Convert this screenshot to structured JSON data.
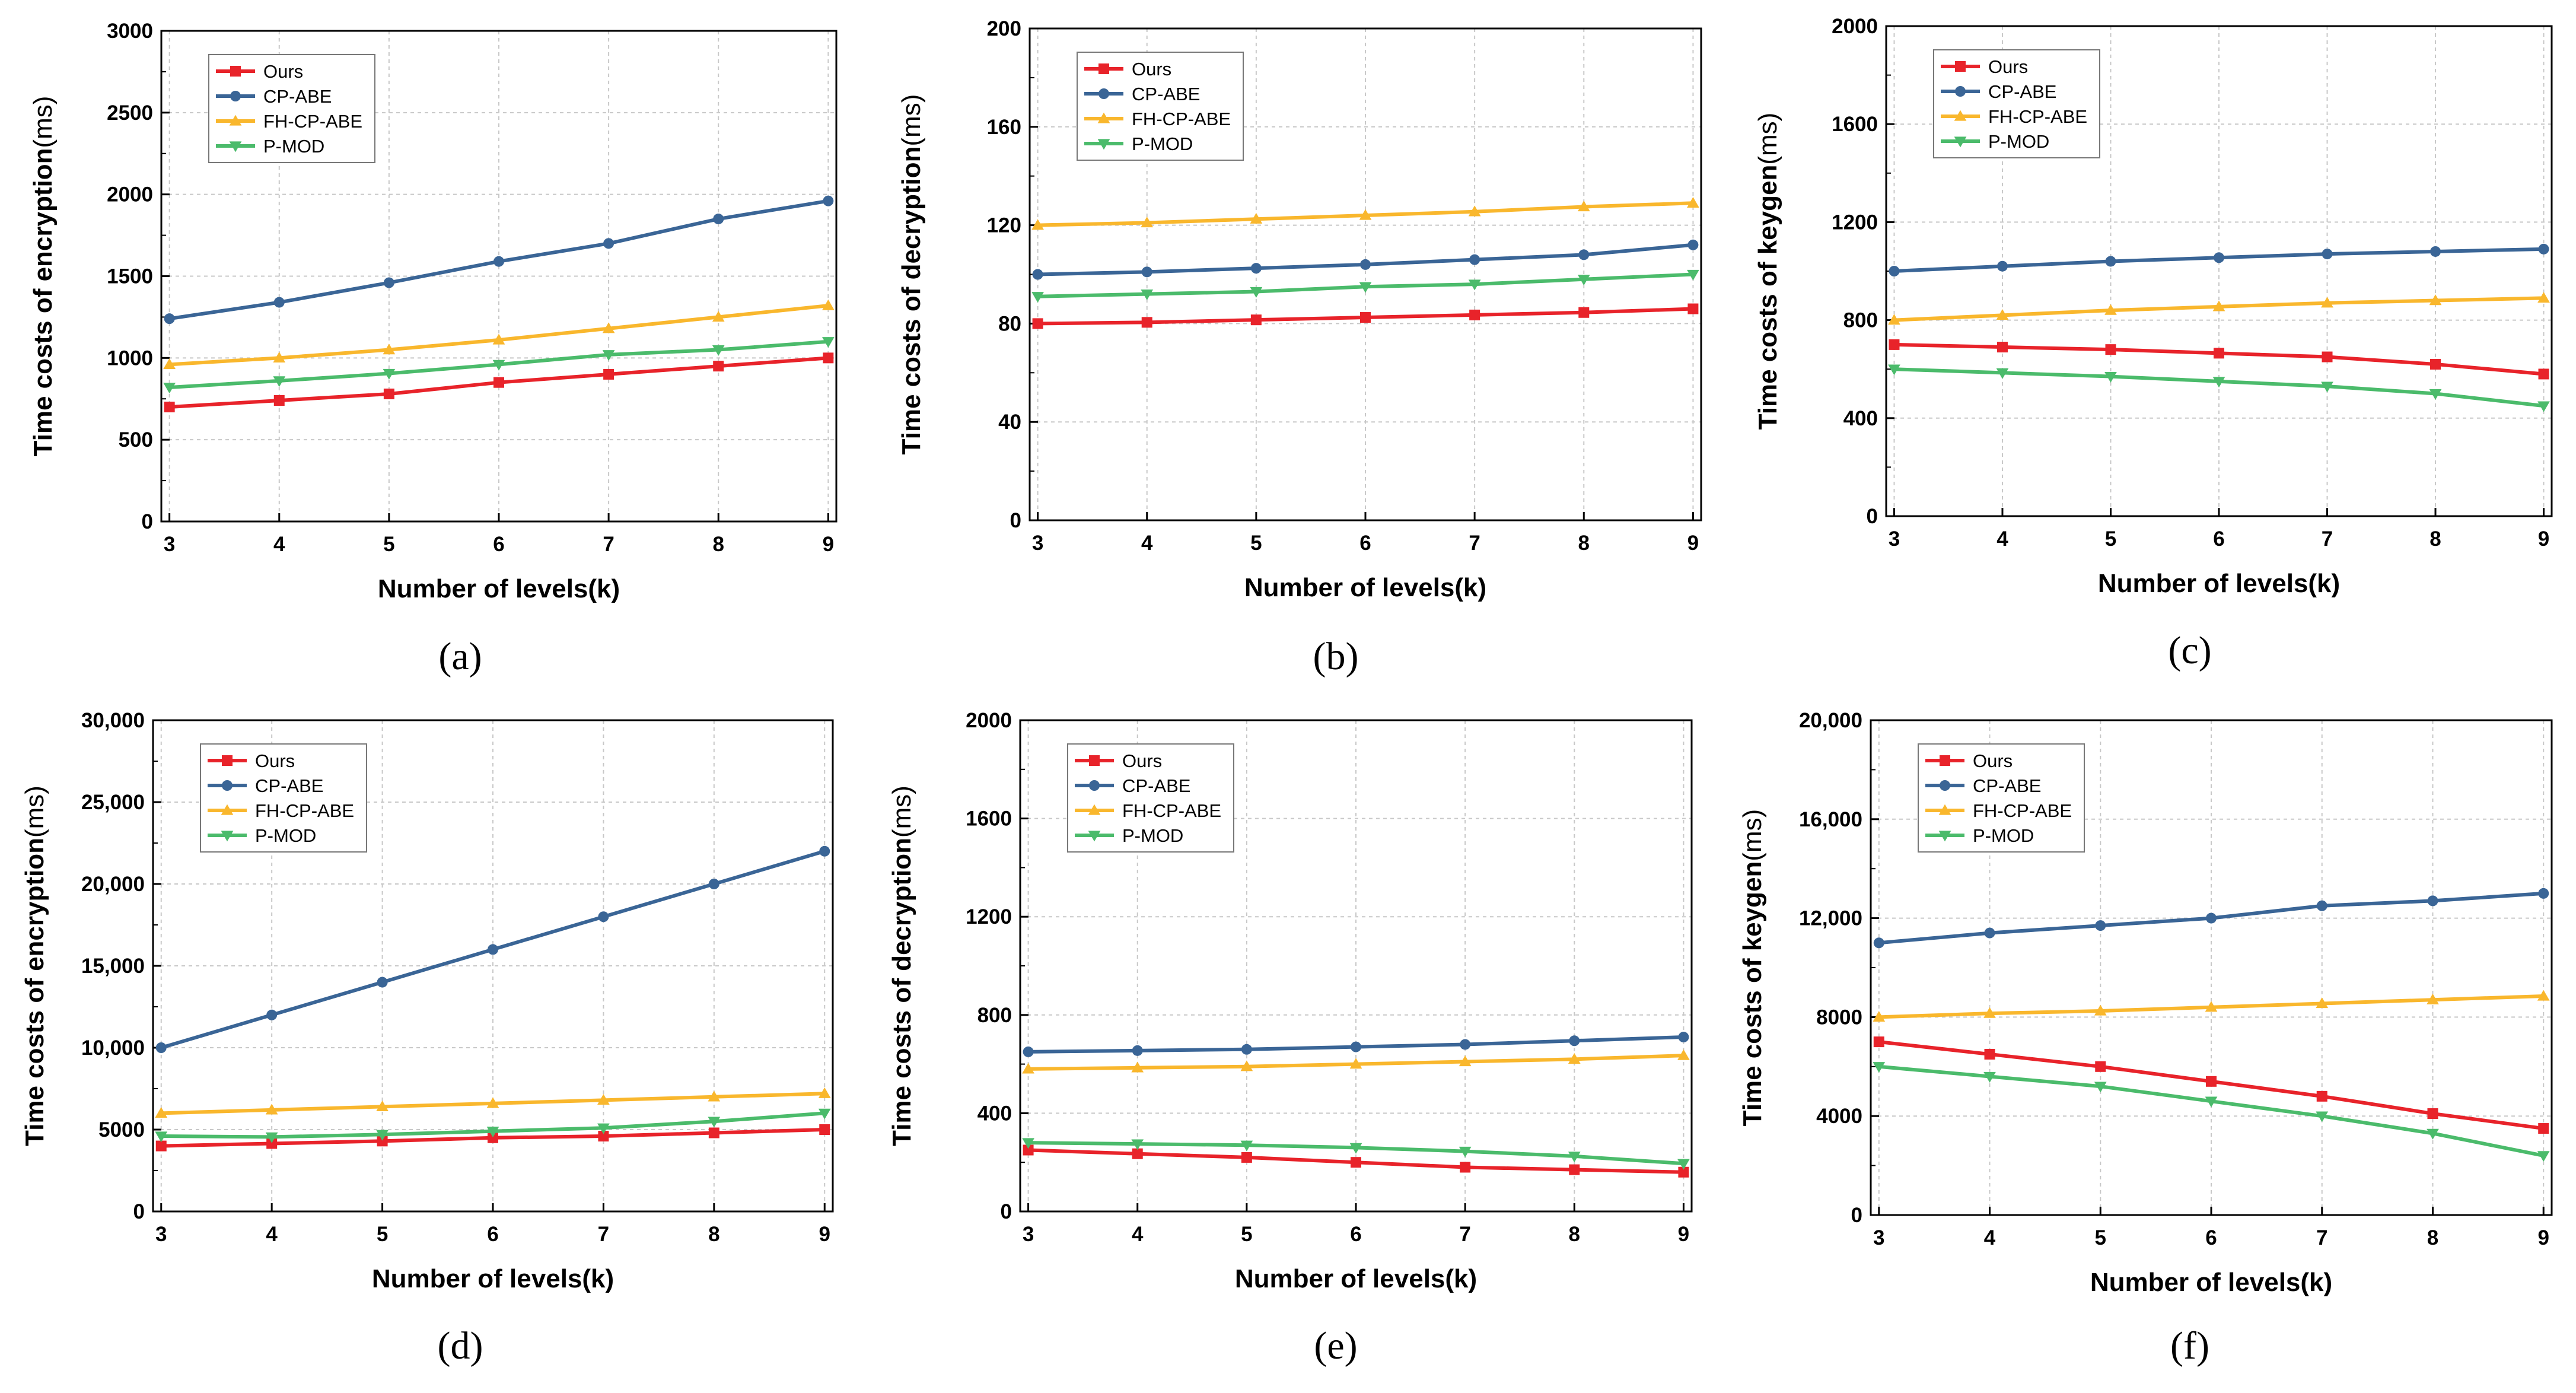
{
  "colors": {
    "Ours": "#e8232a",
    "CP-ABE": "#3a6596",
    "FH-CP-ABE": "#f9b72d",
    "P-MOD": "#4bbb6b",
    "axis": "#000000",
    "grid": "#c8c8c8"
  },
  "markers": {
    "Ours": "square",
    "CP-ABE": "circle",
    "FH-CP-ABE": "triangle-up",
    "P-MOD": "triangle-down"
  },
  "chart_data": [
    {
      "type": "line",
      "caption": "(a)",
      "xlabel": "Number of levels(k)",
      "ylabel_bold": "Time costs of encryption",
      "ylabel_unit": "(ms)",
      "x": [
        3,
        4,
        5,
        6,
        7,
        8,
        9
      ],
      "xlim": [
        3,
        9
      ],
      "ylim": [
        0,
        3000
      ],
      "yticks": [
        0,
        500,
        1000,
        1500,
        2000,
        2500,
        3000
      ],
      "ytick_labels": [
        "0",
        "500",
        "1000",
        "1500",
        "2000",
        "2500",
        "3000"
      ],
      "legend_position": "top-left",
      "grid": true,
      "series": [
        {
          "name": "Ours",
          "values": [
            700,
            740,
            780,
            850,
            900,
            950,
            1000
          ]
        },
        {
          "name": "CP-ABE",
          "values": [
            1240,
            1340,
            1460,
            1590,
            1700,
            1850,
            1960
          ]
        },
        {
          "name": "FH-CP-ABE",
          "values": [
            960,
            1000,
            1050,
            1110,
            1180,
            1250,
            1320
          ]
        },
        {
          "name": "P-MOD",
          "values": [
            820,
            860,
            905,
            960,
            1020,
            1050,
            1100
          ]
        }
      ]
    },
    {
      "type": "line",
      "caption": "(b)",
      "xlabel": "Number of levels(k)",
      "ylabel_bold": "Time costs of decryption",
      "ylabel_unit": "(ms)",
      "x": [
        3,
        4,
        5,
        6,
        7,
        8,
        9
      ],
      "xlim": [
        3,
        9
      ],
      "ylim": [
        0,
        200
      ],
      "yticks": [
        0,
        40,
        80,
        120,
        160,
        200
      ],
      "ytick_labels": [
        "0",
        "40",
        "80",
        "120",
        "160",
        "200"
      ],
      "legend_position": "top-left",
      "grid": true,
      "series": [
        {
          "name": "Ours",
          "values": [
            80,
            80.5,
            81.5,
            82.5,
            83.5,
            84.5,
            86
          ]
        },
        {
          "name": "CP-ABE",
          "values": [
            100,
            101,
            102.5,
            104,
            106,
            108,
            112
          ]
        },
        {
          "name": "FH-CP-ABE",
          "values": [
            120,
            121,
            122.5,
            124,
            125.5,
            127.5,
            129
          ]
        },
        {
          "name": "P-MOD",
          "values": [
            91,
            92,
            93,
            95,
            96,
            98,
            100
          ]
        }
      ]
    },
    {
      "type": "line",
      "caption": "(c)",
      "xlabel": "Number of levels(k)",
      "ylabel_bold": "Time costs of keygen",
      "ylabel_unit": "(ms)",
      "x": [
        3,
        4,
        5,
        6,
        7,
        8,
        9
      ],
      "xlim": [
        3,
        9
      ],
      "ylim": [
        0,
        2000
      ],
      "yticks": [
        0,
        400,
        800,
        1200,
        1600,
        2000
      ],
      "ytick_labels": [
        "0",
        "400",
        "800",
        "1200",
        "1600",
        "2000"
      ],
      "legend_position": "top-left",
      "grid": true,
      "series": [
        {
          "name": "Ours",
          "values": [
            700,
            690,
            680,
            665,
            650,
            620,
            580
          ]
        },
        {
          "name": "CP-ABE",
          "values": [
            1000,
            1020,
            1040,
            1055,
            1070,
            1080,
            1090
          ]
        },
        {
          "name": "FH-CP-ABE",
          "values": [
            800,
            820,
            840,
            855,
            870,
            880,
            890
          ]
        },
        {
          "name": "P-MOD",
          "values": [
            600,
            585,
            570,
            550,
            530,
            500,
            450
          ]
        }
      ]
    },
    {
      "type": "line",
      "caption": "(d)",
      "xlabel": "Number of levels(k)",
      "ylabel_bold": "Time costs of encryption",
      "ylabel_unit": "(ms)",
      "x": [
        3,
        4,
        5,
        6,
        7,
        8,
        9
      ],
      "xlim": [
        3,
        9
      ],
      "ylim": [
        0,
        30000
      ],
      "yticks": [
        0,
        5000,
        10000,
        15000,
        20000,
        25000,
        30000
      ],
      "ytick_labels": [
        "0",
        "5000",
        "10,000",
        "15,000",
        "20,000",
        "25,000",
        "30,000"
      ],
      "legend_position": "top-left",
      "grid": true,
      "series": [
        {
          "name": "Ours",
          "values": [
            4000,
            4150,
            4300,
            4500,
            4600,
            4800,
            5000
          ]
        },
        {
          "name": "CP-ABE",
          "values": [
            10000,
            12000,
            14000,
            16000,
            18000,
            20000,
            22000
          ]
        },
        {
          "name": "FH-CP-ABE",
          "values": [
            6000,
            6200,
            6400,
            6600,
            6800,
            7000,
            7200
          ]
        },
        {
          "name": "P-MOD",
          "values": [
            4600,
            4550,
            4700,
            4900,
            5100,
            5500,
            6000
          ]
        }
      ]
    },
    {
      "type": "line",
      "caption": "(e)",
      "xlabel": "Number of levels(k)",
      "ylabel_bold": "Time costs of decryption",
      "ylabel_unit": "(ms)",
      "x": [
        3,
        4,
        5,
        6,
        7,
        8,
        9
      ],
      "xlim": [
        3,
        9
      ],
      "ylim": [
        0,
        2000
      ],
      "yticks": [
        0,
        400,
        800,
        1200,
        1600,
        2000
      ],
      "ytick_labels": [
        "0",
        "400",
        "800",
        "1200",
        "1600",
        "2000"
      ],
      "legend_position": "top-left",
      "grid": true,
      "series": [
        {
          "name": "Ours",
          "values": [
            250,
            235,
            220,
            200,
            180,
            170,
            160
          ]
        },
        {
          "name": "CP-ABE",
          "values": [
            650,
            655,
            660,
            670,
            680,
            695,
            710
          ]
        },
        {
          "name": "FH-CP-ABE",
          "values": [
            580,
            585,
            590,
            600,
            610,
            620,
            635
          ]
        },
        {
          "name": "P-MOD",
          "values": [
            280,
            275,
            270,
            260,
            245,
            225,
            195
          ]
        }
      ]
    },
    {
      "type": "line",
      "caption": "(f)",
      "xlabel": "Number of levels(k)",
      "ylabel_bold": "Time costs of keygen",
      "ylabel_unit": "(ms)",
      "x": [
        3,
        4,
        5,
        6,
        7,
        8,
        9
      ],
      "xlim": [
        3,
        9
      ],
      "ylim": [
        0,
        20000
      ],
      "yticks": [
        0,
        4000,
        8000,
        12000,
        16000,
        20000
      ],
      "ytick_labels": [
        "0",
        "4000",
        "8000",
        "12,000",
        "16,000",
        "20,000"
      ],
      "legend_position": "top-left",
      "grid": true,
      "series": [
        {
          "name": "Ours",
          "values": [
            7000,
            6500,
            6000,
            5400,
            4800,
            4100,
            3500
          ]
        },
        {
          "name": "CP-ABE",
          "values": [
            11000,
            11400,
            11700,
            12000,
            12500,
            12700,
            13000
          ]
        },
        {
          "name": "FH-CP-ABE",
          "values": [
            8000,
            8150,
            8250,
            8400,
            8550,
            8700,
            8850
          ]
        },
        {
          "name": "P-MOD",
          "values": [
            6000,
            5600,
            5200,
            4600,
            4000,
            3300,
            2400
          ]
        }
      ]
    }
  ]
}
